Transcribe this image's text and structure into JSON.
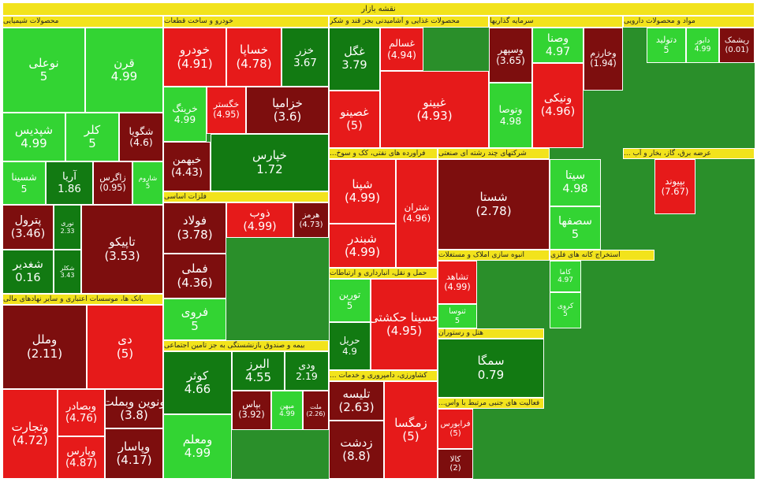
{
  "title": "نقشه بازار",
  "sectors": [
    {
      "title": "محصولات شیمیایی",
      "tiles": [
        {
          "name": "قرن",
          "label": "4.99",
          "color": "#33d433"
        },
        {
          "name": "نوعلی",
          "label": "5",
          "color": "#33d433"
        },
        {
          "name": "شپدیس",
          "label": "4.99",
          "color": "#33d433"
        },
        {
          "name": "کلر",
          "label": "5",
          "color": "#33d433"
        },
        {
          "name": "شگویا",
          "label": "(4.6)",
          "color": "#7d0e0e"
        },
        {
          "name": "شسینا",
          "label": "5",
          "color": "#33d433"
        },
        {
          "name": "آریا",
          "label": "1.86",
          "color": "#127a12"
        },
        {
          "name": "زاگرس",
          "label": "(0.95)",
          "color": "#7d0e0e"
        },
        {
          "name": "شاروم",
          "label": "5",
          "color": "#33d433"
        },
        {
          "name": "پترول",
          "label": "(3.46)",
          "color": "#7d0e0e"
        },
        {
          "name": "نوری",
          "label": "2.33",
          "color": "#127a12"
        },
        {
          "name": "تاپیکو",
          "label": "(3.53)",
          "color": "#7d0e0e"
        },
        {
          "name": "شغدیر",
          "label": "0.16",
          "color": "#127a12"
        },
        {
          "name": "شکلر",
          "label": "3.43",
          "color": "#127a12"
        }
      ]
    },
    {
      "title": "خودرو و ساخت قطعات",
      "tiles": [
        {
          "name": "خودرو",
          "label": "(4.91)",
          "color": "#e61a1a"
        },
        {
          "name": "خساپا",
          "label": "(4.78)",
          "color": "#e61a1a"
        },
        {
          "name": "خزر",
          "label": "3.67",
          "color": "#127a12"
        },
        {
          "name": "خرینگ",
          "label": "4.99",
          "color": "#33d433"
        },
        {
          "name": "خگستر",
          "label": "(4.95)",
          "color": "#e61a1a"
        },
        {
          "name": "خزامیا",
          "label": "(3.6)",
          "color": "#7d0e0e"
        },
        {
          "name": "خبهمن",
          "label": "(4.43)",
          "color": "#7d0e0e"
        },
        {
          "name": "خپارس",
          "label": "1.72",
          "color": "#127a12"
        }
      ]
    },
    {
      "title": "محصولات غذایی و آشامیدنی بجز قند و شکر",
      "tiles": [
        {
          "name": "غگل",
          "label": "3.79",
          "color": "#127a12"
        },
        {
          "name": "غسالم",
          "label": "(4.94)",
          "color": "#e61a1a"
        },
        {
          "name": "غبینو",
          "label": "(4.93)",
          "color": "#e61a1a"
        },
        {
          "name": "غصینو",
          "label": "(5)",
          "color": "#e61a1a"
        }
      ]
    },
    {
      "title": "سرمایه گذاریها",
      "tiles": [
        {
          "name": "وسپهر",
          "label": "(3.65)",
          "color": "#7d0e0e"
        },
        {
          "name": "وصنا",
          "label": "4.97",
          "color": "#33d433"
        },
        {
          "name": "وخارزم",
          "label": "(1.94)",
          "color": "#7d0e0e"
        },
        {
          "name": "وتوصا",
          "label": "4.98",
          "color": "#33d433"
        },
        {
          "name": "ونیکی",
          "label": "(4.96)",
          "color": "#e61a1a"
        }
      ]
    },
    {
      "title": "مواد و محصولات دارویی",
      "tiles": [
        {
          "name": "دتولید",
          "label": "5",
          "color": "#33d433"
        },
        {
          "name": "دابور",
          "label": "4.99",
          "color": "#33d433"
        },
        {
          "name": "ریشمک",
          "label": "(0.01)",
          "color": "#7d0e0e"
        }
      ]
    },
    {
      "title": "فلزات اساسی",
      "tiles": [
        {
          "name": "فولاد",
          "label": "(3.78)",
          "color": "#7d0e0e"
        },
        {
          "name": "ذوب",
          "label": "(4.99)",
          "color": "#e61a1a"
        },
        {
          "name": "هرمز",
          "label": "(4.73)",
          "color": "#7d0e0e"
        },
        {
          "name": "فملی",
          "label": "(4.36)",
          "color": "#7d0e0e"
        },
        {
          "name": "فروی",
          "label": "5",
          "color": "#33d433"
        }
      ]
    },
    {
      "title": "بانک ها، موسسات اعتباری و سایر نهادهای مالی",
      "tiles": [
        {
          "name": "وملل",
          "label": "(2.11)",
          "color": "#7d0e0e"
        },
        {
          "name": "دی",
          "label": "(5)",
          "color": "#e61a1a"
        },
        {
          "name": "وتجارت",
          "label": "(4.72)",
          "color": "#e61a1a"
        },
        {
          "name": "وبصادر",
          "label": "(4.76)",
          "color": "#e61a1a"
        },
        {
          "name": "ونوین وبملت",
          "label": "(3.8)",
          "color": "#7d0e0e"
        },
        {
          "name": "وپارس",
          "label": "(4.87)",
          "color": "#e61a1a"
        },
        {
          "name": "وپاسار",
          "label": "(4.17)",
          "color": "#7d0e0e"
        }
      ]
    },
    {
      "title": "بیمه و صندوق بازنشستگی به جز تامین اجتماعی",
      "tiles": [
        {
          "name": "کوثر",
          "label": "4.66",
          "color": "#127a12"
        },
        {
          "name": "البرز",
          "label": "4.55",
          "color": "#127a12"
        },
        {
          "name": "ودی",
          "label": "2.19",
          "color": "#127a12"
        },
        {
          "name": "ومعلم",
          "label": "4.99",
          "color": "#33d433"
        },
        {
          "name": "بپاس",
          "label": "(3.92)",
          "color": "#7d0e0e"
        },
        {
          "name": "میهن",
          "label": "4.99",
          "color": "#33d433"
        },
        {
          "name": "ملت",
          "label": "(2.26)",
          "color": "#7d0e0e"
        }
      ]
    },
    {
      "title": "فراورده های نفتی، کک و سوخ...",
      "tiles": [
        {
          "name": "شپنا",
          "label": "(4.99)",
          "color": "#e61a1a"
        },
        {
          "name": "شبندر",
          "label": "(4.99)",
          "color": "#e61a1a"
        },
        {
          "name": "شتران",
          "label": "(4.96)",
          "color": "#e61a1a"
        }
      ]
    },
    {
      "title": "شرکتهای چند رشته ای صنعتی",
      "tiles": [
        {
          "name": "شستا",
          "label": "(2.78)",
          "color": "#7d0e0e"
        }
      ]
    },
    {
      "title": "عرضه برق، گاز، بخار و آب ...",
      "tiles": [
        {
          "name": "بپیوند",
          "label": "(7.67)",
          "color": "#e61a1a"
        }
      ]
    },
    {
      "title": "استخراج کانه های فلزی",
      "tiles": [
        {
          "name": "سیتا",
          "label": "4.98",
          "color": "#33d433"
        },
        {
          "name": "سصفها",
          "label": "5",
          "color": "#33d433"
        },
        {
          "name": "کاما",
          "label": "4.97",
          "color": "#33d433"
        },
        {
          "name": "کروی",
          "label": "5",
          "color": "#33d433"
        }
      ]
    },
    {
      "title": "حمل و نقل، انبارداری و ارتباطات",
      "tiles": [
        {
          "name": "حسینا حکشتی",
          "label": "(4.95)",
          "color": "#e61a1a"
        },
        {
          "name": "تورین",
          "label": "5",
          "color": "#33d433"
        },
        {
          "name": "حریل",
          "label": "4.9",
          "color": "#127a12"
        }
      ]
    },
    {
      "title": "هتل و رستوران",
      "tiles": [
        {
          "name": "سمگا",
          "label": "0.79",
          "color": "#127a12"
        }
      ]
    },
    {
      "title": "کشاورزی، دامپروری و خدمات ...",
      "tiles": [
        {
          "name": "تلیسه",
          "label": "(2.63)",
          "color": "#7d0e0e"
        },
        {
          "name": "زمگسا",
          "label": "(5)",
          "color": "#e61a1a"
        },
        {
          "name": "زدشت",
          "label": "(8.8)",
          "color": "#7d0e0e"
        }
      ]
    },
    {
      "title": "فعالیت های جنبی مرتبط با واس...",
      "tiles": [
        {
          "name": "فرابورس",
          "label": "(5)",
          "color": "#e61a1a"
        },
        {
          "name": "کالا",
          "label": "(2)",
          "color": "#7d0e0e"
        }
      ]
    },
    {
      "title": "انبوه سازی املاک و مستغلات",
      "tiles": [
        {
          "name": "تشاهد",
          "label": "(4.99)",
          "color": "#e61a1a"
        },
        {
          "name": "ثنوسا",
          "label": "5",
          "color": "#33d433"
        }
      ]
    }
  ]
}
